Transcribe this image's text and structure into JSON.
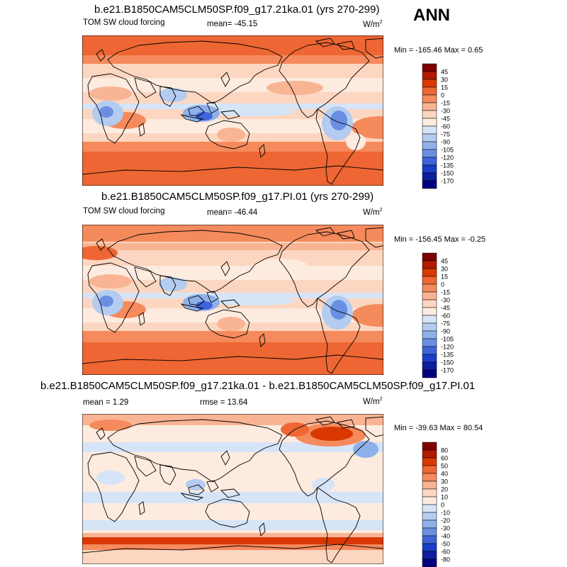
{
  "season": "ANN",
  "panels": [
    {
      "title": "b.e21.B1850CAM5CLM50SP.f09_g17.21ka.01 (yrs 270-299)",
      "left_label": "TOM SW cloud forcing",
      "center_label": "mean= -45.15",
      "units": "W/m",
      "units_sup": "2",
      "minmax": "Min = -165.46 Max =   0.65",
      "colorbar_labels": [
        "45",
        "30",
        "15",
        "0",
        "-15",
        "-30",
        "-45",
        "-60",
        "-75",
        "-90",
        "-105",
        "-120",
        "-135",
        "-150",
        "-170"
      ]
    },
    {
      "title": "b.e21.B1850CAM5CLM50SP.f09_g17.PI.01 (yrs 270-299)",
      "left_label": "TOM SW cloud forcing",
      "center_label": "mean= -46.44",
      "units": "W/m",
      "units_sup": "2",
      "minmax": "Min = -156.45 Max =  -0.25",
      "colorbar_labels": [
        "45",
        "30",
        "15",
        "0",
        "-15",
        "-30",
        "-45",
        "-60",
        "-75",
        "-90",
        "-105",
        "-120",
        "-135",
        "-150",
        "-170"
      ]
    },
    {
      "title": "b.e21.B1850CAM5CLM50SP.f09_g17.21ka.01 - b.e21.B1850CAM5CLM50SP.f09_g17.PI.01",
      "left_label": "mean =   1.29",
      "center_label": "rmse =  13.64",
      "units": "W/m",
      "units_sup": "2",
      "minmax": "Min = -39.63 Max =  80.54",
      "colorbar_labels": [
        "80",
        "60",
        "50",
        "40",
        "30",
        "20",
        "10",
        "0",
        "-10",
        "-20",
        "-30",
        "-40",
        "-50",
        "-60",
        "-80"
      ]
    }
  ],
  "colors": {
    "abs_scale": [
      "#7f0000",
      "#b01a00",
      "#d93800",
      "#ee6633",
      "#f58a5c",
      "#f9b493",
      "#fcd6c0",
      "#fdebdf",
      "#d6e4f7",
      "#b3ccf0",
      "#8fb1ea",
      "#6a8fe2",
      "#3f63d9",
      "#1a3dc8",
      "#0d1f9e",
      "#000080"
    ],
    "diff_scale": [
      "#7f0000",
      "#b01a00",
      "#d93800",
      "#ee6633",
      "#f58a5c",
      "#f9b493",
      "#fcd6c0",
      "#fdebdf",
      "#d6e4f7",
      "#b3ccf0",
      "#8fb1ea",
      "#6a8fe2",
      "#3f63d9",
      "#1a3dc8",
      "#0d1f9e",
      "#000080"
    ]
  }
}
